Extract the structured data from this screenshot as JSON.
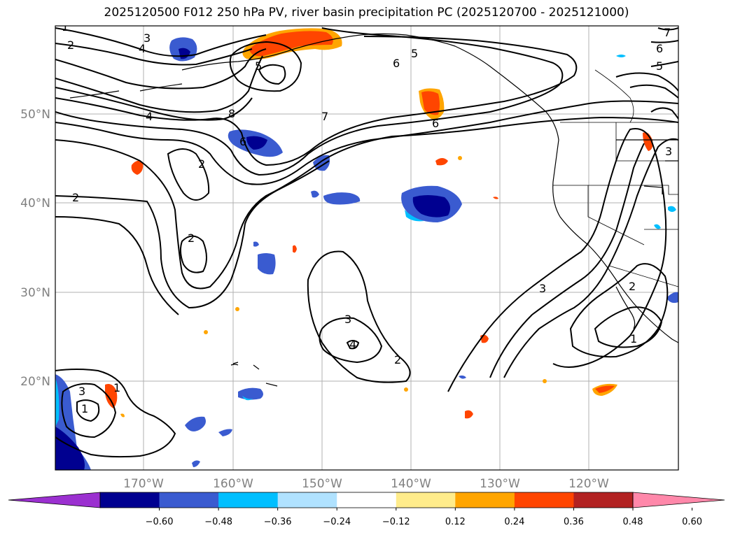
{
  "title": "2025120500 F012 250 hPa PV, river basin precipitation PC (2025120700 - 2025121000)",
  "lat_labels": [
    "50°N",
    "40°N",
    "30°N",
    "20°N"
  ],
  "lon_labels": [
    "170°W",
    "160°W",
    "150°W",
    "140°W",
    "130°W",
    "120°W"
  ],
  "colorbar": {
    "ticks": [
      "−0.60",
      "−0.48",
      "−0.36",
      "−0.24",
      "−0.12",
      "0.12",
      "0.24",
      "0.36",
      "0.48",
      "0.60"
    ],
    "colors": [
      "#9b30d0",
      "#000090",
      "#3a5bd0",
      "#00bfff",
      "#b0e2ff",
      "#ffffff",
      "#ffec8b",
      "#ffa500",
      "#ff4500",
      "#b22222",
      "#ff88aa"
    ]
  },
  "contour_labels": [
    "1",
    "2",
    "3",
    "4",
    "5",
    "6",
    "5",
    "6",
    "2",
    "4",
    "8",
    "7",
    "6",
    "2",
    "2",
    "3",
    "4",
    "2",
    "3",
    "1",
    "1",
    "3",
    "1",
    "2",
    "3",
    "6",
    "5",
    "7"
  ]
}
